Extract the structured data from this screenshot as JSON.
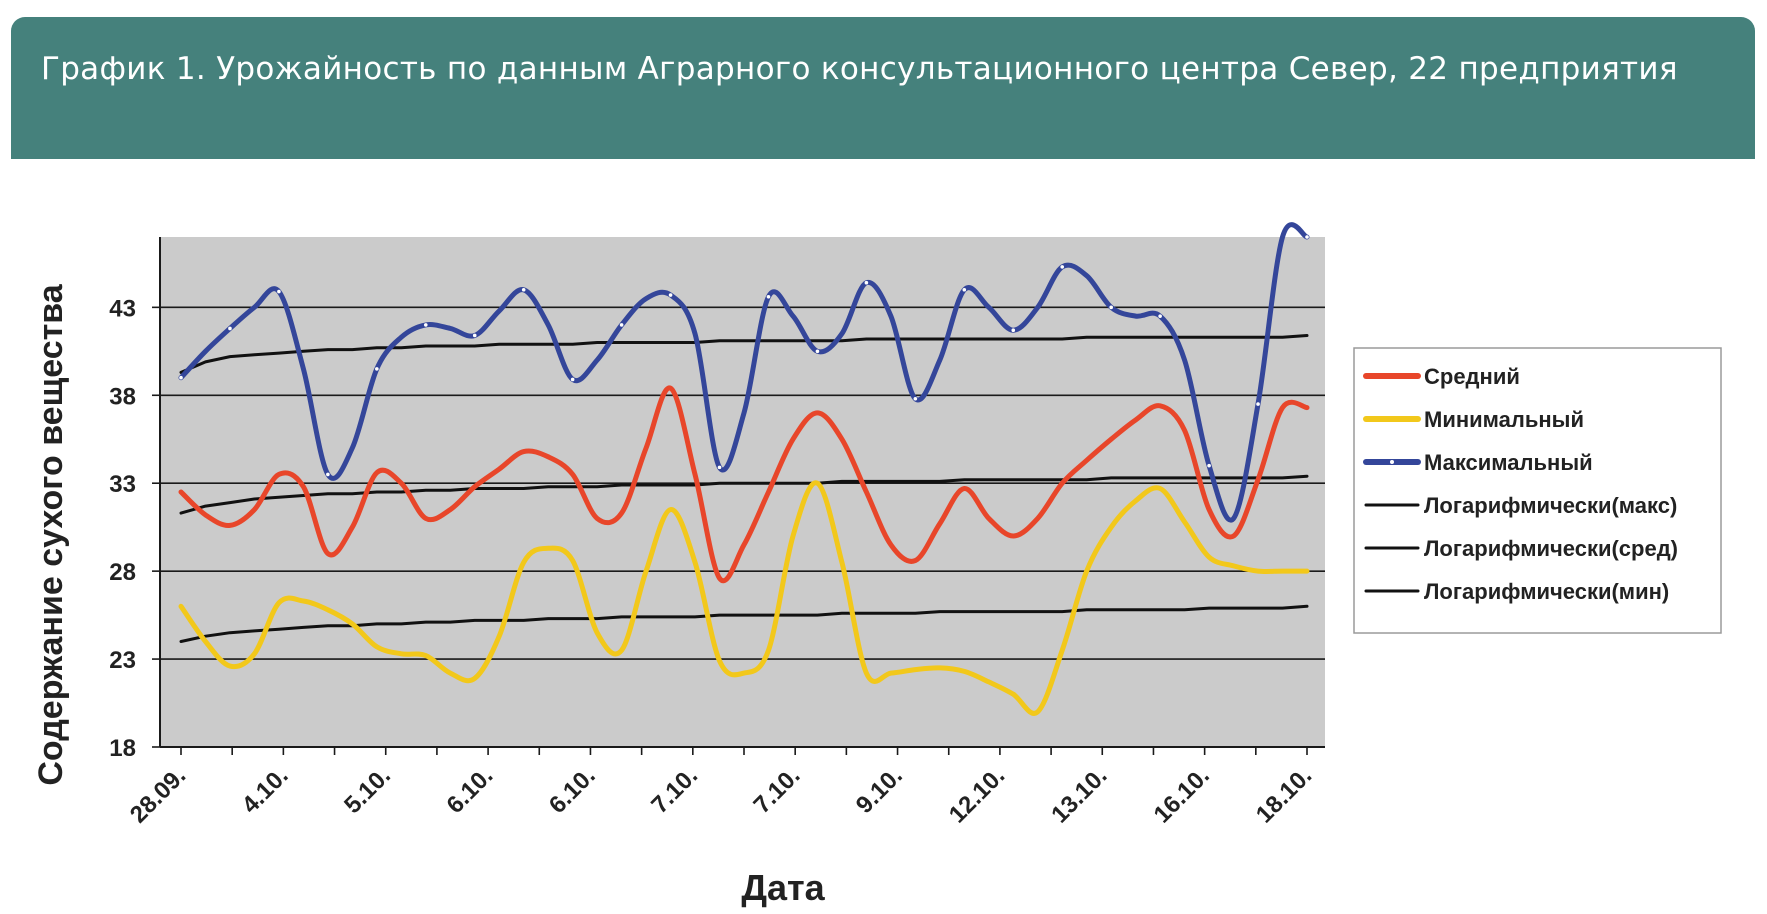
{
  "header": {
    "title": "График 1. Урожайность по данным Аграрного консультационного центра Север, 22 предприятия"
  },
  "chart_data": {
    "type": "line",
    "title": "",
    "xlabel": "Дата",
    "ylabel": "Содержание сухого вещества",
    "ylim": [
      18,
      47
    ],
    "yticks": [
      18,
      23,
      28,
      33,
      38,
      43
    ],
    "grid": true,
    "legend_position": "right",
    "categories": [
      "28.09.",
      "4.10.",
      "5.10.",
      "6.10.",
      "6.10.",
      "7.10.",
      "7.10.",
      "9.10.",
      "12.10.",
      "13.10.",
      "16.10.",
      "18.10."
    ],
    "x": [
      0,
      0.5,
      1,
      1.5,
      2,
      2.5,
      3,
      3.5,
      4,
      4.5,
      5,
      5.5,
      6,
      6.5,
      7,
      7.5,
      8,
      8.5,
      9,
      9.5,
      10,
      10.5,
      11,
      11.5,
      12,
      12.5,
      13,
      13.5,
      14,
      14.5,
      15,
      15.5,
      16,
      16.5,
      17,
      17.5,
      18,
      18.5,
      19,
      19.5,
      20,
      20.5,
      21,
      21.5,
      22,
      22.5,
      23
    ],
    "series": [
      {
        "name": "Средний",
        "color": "#e8462a",
        "style": "solid",
        "values": [
          32.5,
          31.2,
          30.6,
          31.5,
          33.5,
          32.8,
          29.0,
          30.5,
          33.6,
          33.0,
          31.0,
          31.5,
          32.8,
          33.8,
          34.8,
          34.5,
          33.5,
          31.0,
          31.3,
          35.0,
          38.4,
          33.5,
          27.6,
          29.5,
          32.5,
          35.5,
          37.0,
          35.5,
          32.5,
          29.5,
          28.6,
          30.7,
          32.7,
          31.0,
          30.0,
          31.0,
          33.0,
          34.3,
          35.5,
          36.6,
          37.4,
          36.0,
          31.5,
          30.0,
          33.2,
          37.3,
          37.3
        ]
      },
      {
        "name": "Минимальный",
        "color": "#f2c81b",
        "style": "solid",
        "values": [
          26.0,
          24.0,
          22.6,
          23.3,
          26.2,
          26.3,
          25.8,
          25.0,
          23.7,
          23.3,
          23.2,
          22.2,
          21.9,
          24.3,
          28.5,
          29.3,
          28.6,
          24.5,
          23.5,
          28.0,
          31.5,
          28.5,
          22.9,
          22.2,
          23.5,
          30.0,
          33.0,
          28.5,
          22.2,
          22.2,
          22.4,
          22.5,
          22.3,
          21.7,
          21.0,
          20.0,
          23.5,
          28.0,
          30.5,
          32.0,
          32.7,
          30.8,
          28.8,
          28.3,
          28.0,
          28.0,
          28.0
        ]
      },
      {
        "name": "Максимальный",
        "color": "#34469a",
        "style": "solid",
        "marker": "dot",
        "values": [
          39.0,
          40.5,
          41.8,
          43.0,
          43.9,
          39.5,
          33.5,
          35.0,
          39.5,
          41.3,
          42.0,
          41.8,
          41.4,
          42.8,
          44.0,
          42.0,
          38.9,
          40.0,
          42.0,
          43.5,
          43.7,
          41.5,
          33.9,
          37.0,
          43.6,
          42.5,
          40.5,
          41.5,
          44.4,
          42.5,
          37.8,
          40.0,
          44.0,
          43.0,
          41.7,
          43.0,
          45.3,
          44.8,
          43.0,
          42.5,
          42.5,
          40.0,
          34.0,
          31.0,
          37.5,
          47.0,
          47.0
        ]
      },
      {
        "name": "Логарифмически(макс)",
        "color": "#111111",
        "style": "trend",
        "values": [
          39.3,
          39.9,
          40.2,
          40.3,
          40.4,
          40.5,
          40.6,
          40.6,
          40.7,
          40.7,
          40.8,
          40.8,
          40.8,
          40.9,
          40.9,
          40.9,
          40.9,
          41.0,
          41.0,
          41.0,
          41.0,
          41.0,
          41.1,
          41.1,
          41.1,
          41.1,
          41.1,
          41.1,
          41.2,
          41.2,
          41.2,
          41.2,
          41.2,
          41.2,
          41.2,
          41.2,
          41.2,
          41.3,
          41.3,
          41.3,
          41.3,
          41.3,
          41.3,
          41.3,
          41.3,
          41.3,
          41.4
        ]
      },
      {
        "name": "Логарифмически(сред)",
        "color": "#111111",
        "style": "trend",
        "values": [
          31.3,
          31.7,
          31.9,
          32.1,
          32.2,
          32.3,
          32.4,
          32.4,
          32.5,
          32.5,
          32.6,
          32.6,
          32.7,
          32.7,
          32.7,
          32.8,
          32.8,
          32.8,
          32.9,
          32.9,
          32.9,
          32.9,
          33.0,
          33.0,
          33.0,
          33.0,
          33.0,
          33.1,
          33.1,
          33.1,
          33.1,
          33.1,
          33.2,
          33.2,
          33.2,
          33.2,
          33.2,
          33.2,
          33.3,
          33.3,
          33.3,
          33.3,
          33.3,
          33.3,
          33.3,
          33.3,
          33.4
        ]
      },
      {
        "name": "Логарифмически(мин)",
        "color": "#111111",
        "style": "trend",
        "values": [
          24.0,
          24.3,
          24.5,
          24.6,
          24.7,
          24.8,
          24.9,
          24.9,
          25.0,
          25.0,
          25.1,
          25.1,
          25.2,
          25.2,
          25.2,
          25.3,
          25.3,
          25.3,
          25.4,
          25.4,
          25.4,
          25.4,
          25.5,
          25.5,
          25.5,
          25.5,
          25.5,
          25.6,
          25.6,
          25.6,
          25.6,
          25.7,
          25.7,
          25.7,
          25.7,
          25.7,
          25.7,
          25.8,
          25.8,
          25.8,
          25.8,
          25.8,
          25.9,
          25.9,
          25.9,
          25.9,
          26.0
        ]
      }
    ]
  }
}
